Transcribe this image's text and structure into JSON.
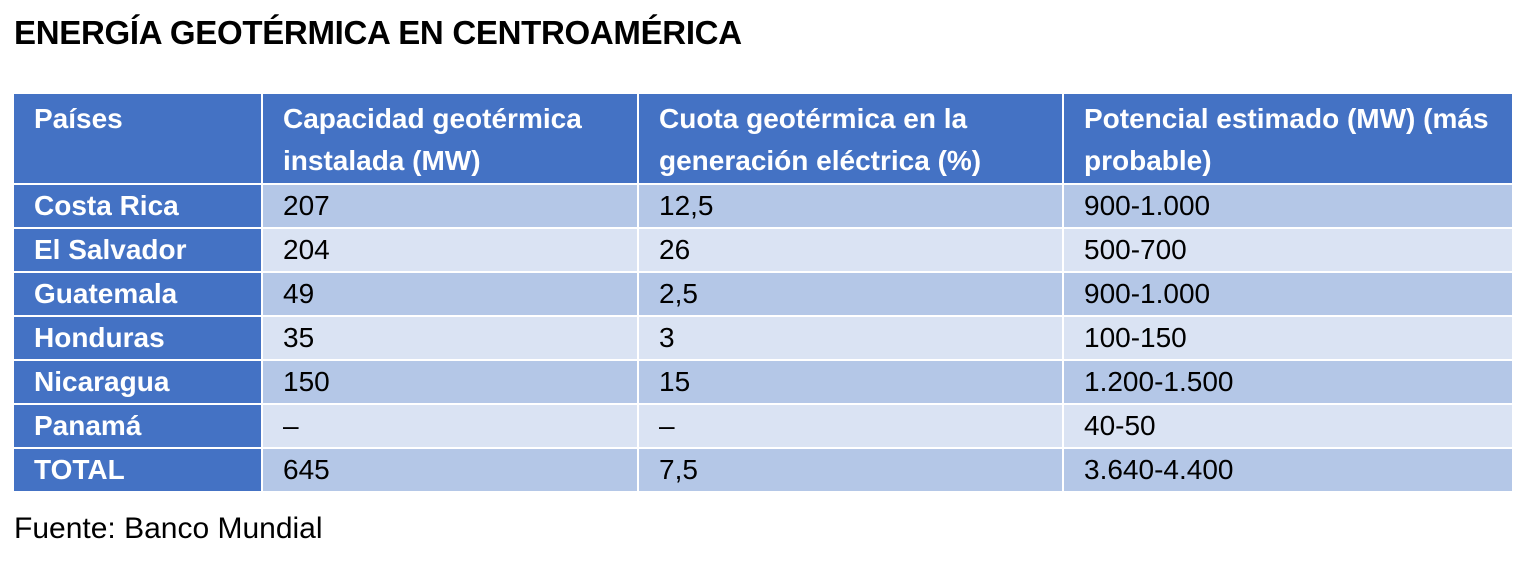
{
  "title": "ENERGÍA GEOTÉRMICA EN CENTROAMÉRICA",
  "table": {
    "headers": [
      "Países",
      "Capacidad geotérmica instalada (MW)",
      "Cuota geotérmica en la generación eléctrica (%)",
      "Potencial estimado (MW) (más probable)"
    ],
    "rows": [
      [
        "Costa Rica",
        "207",
        "12,5",
        "900-1.000"
      ],
      [
        "El Salvador",
        "204",
        "26",
        "500-700"
      ],
      [
        "Guatemala",
        "49",
        "2,5",
        "900-1.000"
      ],
      [
        "Honduras",
        "35",
        "3",
        "100-150"
      ],
      [
        "Nicaragua",
        "150",
        "15",
        "1.200-1.500"
      ],
      [
        "Panamá",
        "–",
        "–",
        "40-50"
      ],
      [
        "TOTAL",
        "645",
        "7,5",
        "3.640-4.400"
      ]
    ]
  },
  "source": "Fuente: Banco Mundial",
  "colors": {
    "header_bg": "#4472c4",
    "row_band_dark": "#b4c7e7",
    "row_band_light": "#dae3f3"
  }
}
